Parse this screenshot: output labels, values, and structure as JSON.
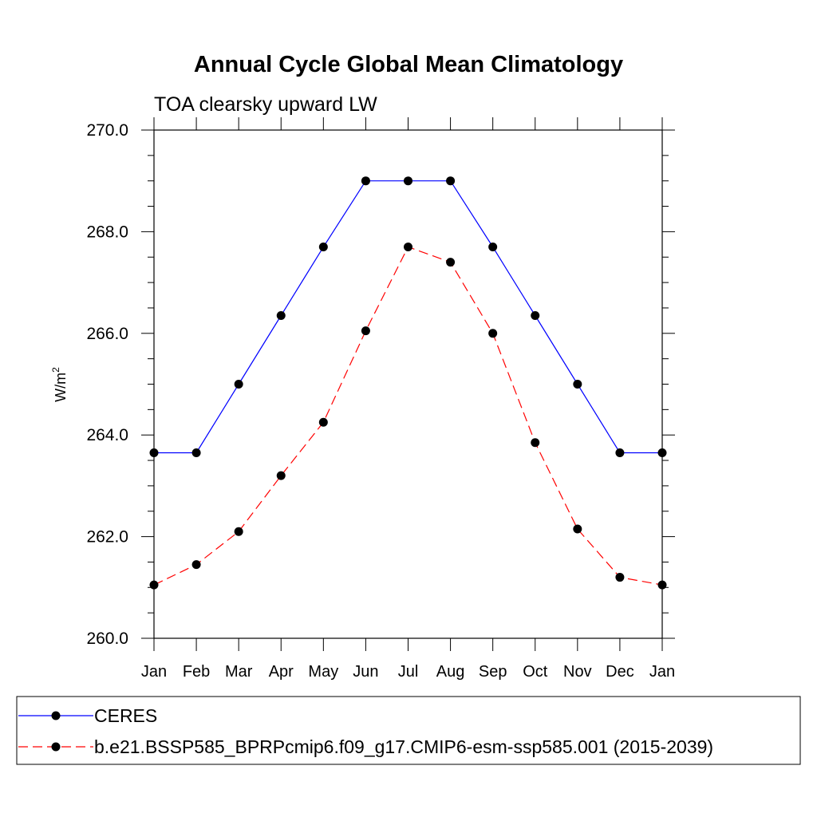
{
  "chart_data": {
    "type": "line",
    "title": "Annual Cycle Global Mean Climatology",
    "subtitle": "TOA clearsky upward LW",
    "xlabel": "",
    "ylabel_base": "W/m",
    "ylabel_sup": "2",
    "categories": [
      "Jan",
      "Feb",
      "Mar",
      "Apr",
      "May",
      "Jun",
      "Jul",
      "Aug",
      "Sep",
      "Oct",
      "Nov",
      "Dec",
      "Jan"
    ],
    "ylim": [
      260,
      270
    ],
    "yticks": [
      260,
      262,
      264,
      266,
      268,
      270
    ],
    "ytick_labels": [
      "260.0",
      "262.0",
      "264.0",
      "266.0",
      "268.0",
      "270.0"
    ],
    "legend_position": "bottom",
    "grid": false,
    "series": [
      {
        "name": "CERES",
        "color": "#0000ff",
        "dash": "solid",
        "marker": "circle",
        "values": [
          263.65,
          263.65,
          265.0,
          266.35,
          267.7,
          269.0,
          269.0,
          269.0,
          267.7,
          266.35,
          265.0,
          263.65,
          263.65
        ]
      },
      {
        "name": "b.e21.BSSP585_BPRPcmip6.f09_g17.CMIP6-esm-ssp585.001 (2015-2039)",
        "color": "#ff0000",
        "dash": "dashed",
        "marker": "circle",
        "values": [
          261.05,
          261.45,
          262.1,
          263.2,
          264.25,
          266.05,
          267.7,
          267.4,
          266.0,
          263.85,
          262.15,
          261.2,
          261.05
        ]
      }
    ]
  }
}
